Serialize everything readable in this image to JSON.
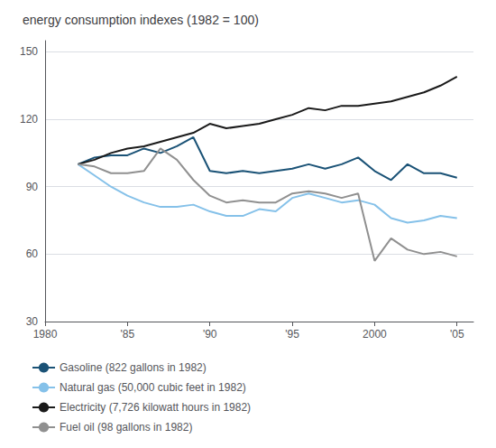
{
  "chart_data": {
    "type": "line",
    "title": "energy consumption indexes (1982 = 100)",
    "x": [
      1982,
      1983,
      1984,
      1985,
      1986,
      1987,
      1988,
      1989,
      1990,
      1991,
      1992,
      1993,
      1994,
      1995,
      1996,
      1997,
      1998,
      1999,
      2000,
      2001,
      2002,
      2003,
      2004,
      2005
    ],
    "series": [
      {
        "name": "Gasoline (822 gallons in 1982)",
        "color": "#1a5276",
        "values": [
          100,
          103,
          104,
          104,
          107,
          105,
          108,
          112,
          97,
          96,
          97,
          96,
          97,
          98,
          100,
          98,
          100,
          103,
          97,
          93,
          100,
          96,
          96,
          94
        ]
      },
      {
        "name": "Natural gas (50,000 cubic feet in 1982)",
        "color": "#85c1e9",
        "values": [
          100,
          95,
          90,
          86,
          83,
          81,
          81,
          82,
          79,
          77,
          77,
          80,
          79,
          85,
          87,
          85,
          83,
          84,
          82,
          76,
          74,
          75,
          77,
          76
        ]
      },
      {
        "name": "Electricity (7,726 kilowatt hours in 1982)",
        "color": "#1a1a1a",
        "values": [
          100,
          102,
          105,
          107,
          108,
          110,
          112,
          114,
          118,
          116,
          117,
          118,
          120,
          122,
          125,
          124,
          126,
          126,
          127,
          128,
          130,
          132,
          135,
          139
        ]
      },
      {
        "name": "Fuel oil (98 gallons in 1982)",
        "color": "#909090",
        "values": [
          100,
          99,
          96,
          96,
          97,
          107,
          102,
          93,
          86,
          83,
          84,
          83,
          83,
          87,
          88,
          87,
          85,
          87,
          57,
          67,
          62,
          60,
          61,
          59
        ]
      }
    ],
    "xlim": [
      1980,
      2006
    ],
    "xticks": [
      1980,
      {
        "value": 1985,
        "label": "'85"
      },
      {
        "value": 1990,
        "label": "'90"
      },
      {
        "value": 1995,
        "label": "'95"
      },
      2000,
      {
        "value": 2005,
        "label": "'05"
      }
    ],
    "ylim": [
      30,
      155
    ],
    "yticks": [
      30,
      60,
      90,
      120,
      150
    ],
    "grid": true,
    "legend": "bottom"
  }
}
